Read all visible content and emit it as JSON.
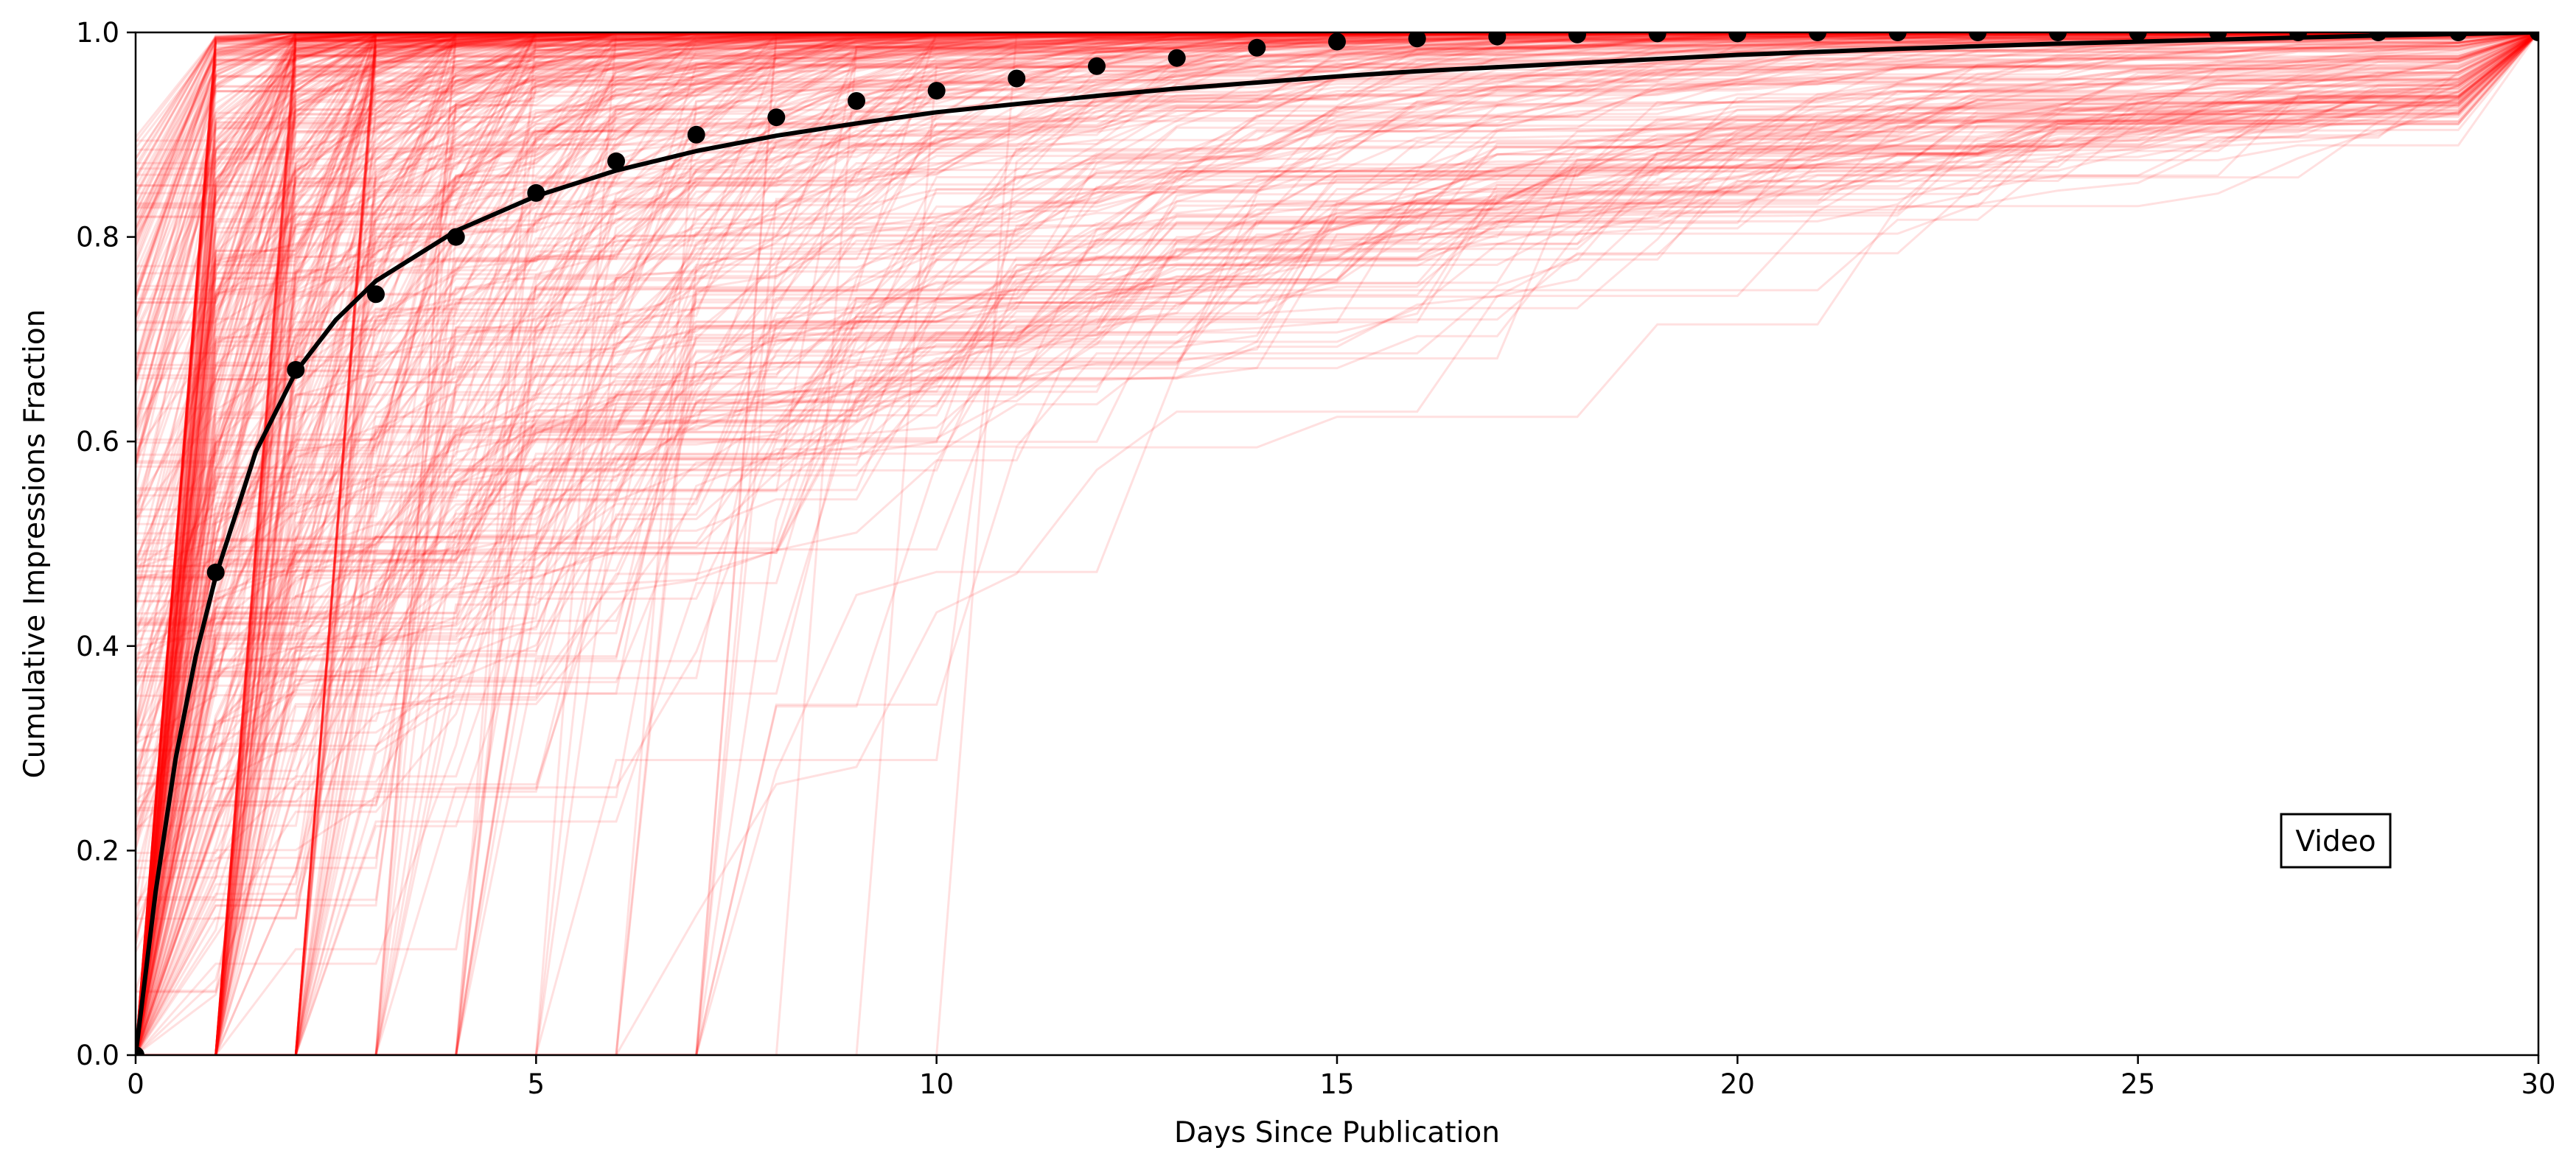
{
  "chart_data": {
    "type": "line",
    "title": "",
    "xlabel": "Days Since Publication",
    "ylabel": "Cumulative Impressions Fraction",
    "xlim": [
      0,
      30
    ],
    "ylim": [
      0,
      1
    ],
    "xticks": [
      "0",
      "5",
      "10",
      "15",
      "20",
      "25",
      "30"
    ],
    "yticks": [
      "0.0",
      "0.2",
      "0.4",
      "0.6",
      "0.8",
      "1.0"
    ],
    "grid": false,
    "annotation": {
      "text": "Video",
      "x": 27.7,
      "y": 0.2
    },
    "series": [
      {
        "kind": "individual-curves",
        "color": "#ff0000",
        "opacity": 0.12,
        "description_count_estimate": 600
      },
      {
        "kind": "mean-points",
        "color": "#000000",
        "x": [
          0,
          1,
          2,
          3,
          4,
          5,
          6,
          7,
          8,
          9,
          10,
          11,
          12,
          13,
          14,
          15,
          16,
          17,
          18,
          19,
          20,
          21,
          22,
          23,
          24,
          25,
          26,
          27,
          28,
          29,
          30
        ],
        "y": [
          0.0,
          0.472,
          0.67,
          0.744,
          0.8,
          0.843,
          0.874,
          0.9,
          0.917,
          0.933,
          0.943,
          0.955,
          0.967,
          0.975,
          0.985,
          0.991,
          0.994,
          0.996,
          0.998,
          0.999,
          0.999,
          1.0,
          1.0,
          1.0,
          1.0,
          1.0,
          1.0,
          1.0,
          1.0,
          1.0,
          1.0
        ]
      },
      {
        "kind": "fit-curve",
        "color": "#000000",
        "x": [
          0,
          0.25,
          0.5,
          0.75,
          1,
          1.5,
          2,
          2.5,
          3,
          4,
          5,
          6,
          7,
          8,
          9,
          10,
          11,
          12,
          13,
          14,
          15,
          16,
          18,
          20,
          22,
          24,
          26,
          28,
          30
        ],
        "y": [
          0.0,
          0.16,
          0.29,
          0.39,
          0.468,
          0.59,
          0.668,
          0.719,
          0.757,
          0.806,
          0.84,
          0.865,
          0.884,
          0.899,
          0.911,
          0.922,
          0.93,
          0.938,
          0.945,
          0.951,
          0.957,
          0.962,
          0.97,
          0.978,
          0.984,
          0.989,
          0.993,
          0.997,
          1.0
        ]
      }
    ]
  }
}
